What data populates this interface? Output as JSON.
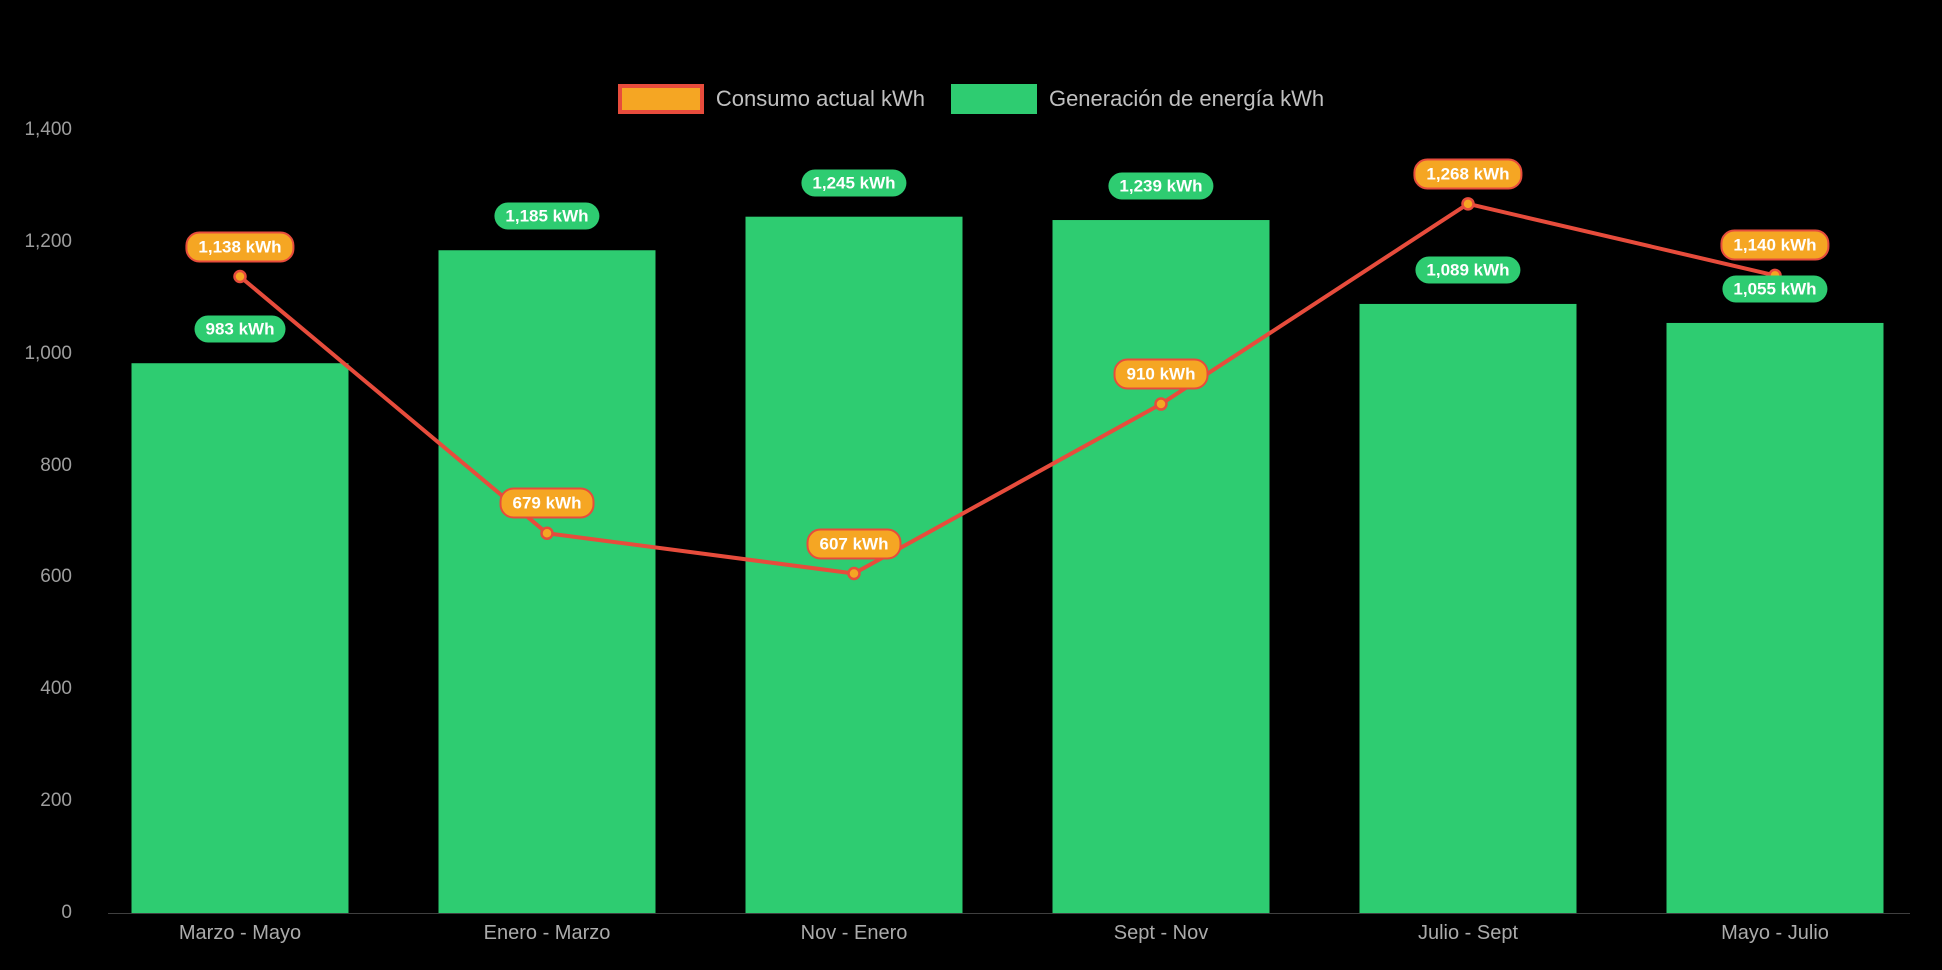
{
  "colors": {
    "background": "#000000",
    "bar_green": "#2ECC71",
    "line_red": "#E74C3C",
    "marker_orange": "#F5A623",
    "axis_text": "#9E9E9E",
    "category_text": "#ABABAB",
    "legend_text": "#C0C0C0",
    "pill_text": "#FFFFFF"
  },
  "legend": {
    "items": [
      {
        "label": "Consumo actual kWh"
      },
      {
        "label": "Generación de energía kWh"
      }
    ]
  },
  "chart_data": {
    "type": "bar",
    "title": "",
    "categories": [
      "Marzo - Mayo",
      "Enero - Marzo",
      "Nov - Enero",
      "Sept - Nov",
      "Julio - Sept",
      "Mayo - Julio"
    ],
    "series": [
      {
        "name": "Generación de energía kWh",
        "type": "bar",
        "color": "#2ECC71",
        "values": [
          983,
          1185,
          1245,
          1239,
          1089,
          1055
        ],
        "labels": [
          "983 kWh",
          "1,185 kWh",
          "1,245 kWh",
          "1,239 kWh",
          "1,089 kWh",
          "1,055 kWh"
        ]
      },
      {
        "name": "Consumo actual kWh",
        "type": "line",
        "color": "#E74C3C",
        "marker_color": "#F5A623",
        "values": [
          1138,
          679,
          607,
          910,
          1268,
          1140
        ],
        "labels": [
          "1,138 kWh",
          "679 kWh",
          "607 kWh",
          "910 kWh",
          "1,268 kWh",
          "1,140 kWh"
        ]
      }
    ],
    "ylim": [
      0,
      1400
    ],
    "yticks": [
      0,
      200,
      400,
      600,
      800,
      1000,
      1200,
      1400
    ],
    "ytick_labels": [
      "0",
      "200",
      "400",
      "600",
      "800",
      "1,000",
      "1,200",
      "1,400"
    ],
    "legend_position": "top",
    "grid": false
  }
}
